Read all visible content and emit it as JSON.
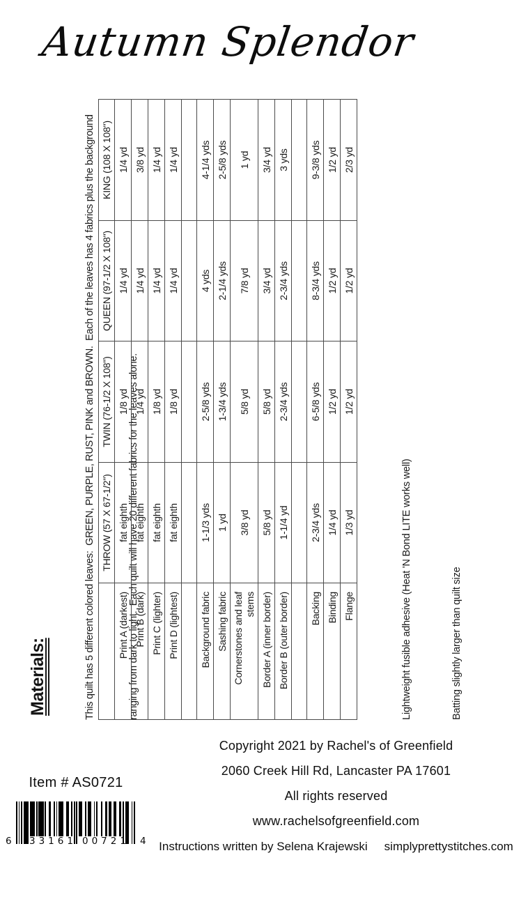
{
  "title": "Autumn Splendor",
  "materials": {
    "heading": "Materials:",
    "description_lines": [
      "This quilt has 5 different colored leaves:  GREEN, PURPLE, RUST, PINK and BROWN.  Each of the leaves has 4 fabrics plus the background",
      "ranging from dark to light.  Each quilt will have 20 different fabrics for the leaves alone."
    ],
    "notes": [
      "Lightweight fusible adhesive (Heat 'N Bond LITE works well)",
      "Batting slightly larger than quilt size"
    ]
  },
  "table": {
    "size_headers": [
      "THROW (57 X 67-1/2\")",
      "TWIN (76-1/2 X 108\")",
      "QUEEN (97-1/2 X 108\")",
      "KING (108 X 108\")"
    ],
    "rows": [
      {
        "label": "Print A (darkest)",
        "values": [
          "fat eighth",
          "1/8 yd",
          "1/4 yd",
          "1/4 yd"
        ]
      },
      {
        "label": "Print B (dark)",
        "values": [
          "fat eighth",
          "1/4 yd",
          "1/4 yd",
          "3/8 yd"
        ]
      },
      {
        "label": "Print C (lighter)",
        "values": [
          "fat eighth",
          "1/8 yd",
          "1/4 yd",
          "1/4 yd"
        ]
      },
      {
        "label": "Print D (lightest)",
        "values": [
          "fat eighth",
          "1/8 yd",
          "1/4 yd",
          "1/4 yd"
        ]
      },
      {
        "spacer": true,
        "label": "",
        "values": [
          "",
          "",
          "",
          ""
        ]
      },
      {
        "label": "Background fabric",
        "values": [
          "1-1/3 yds",
          "2-5/8 yds",
          "4 yds",
          "4-1/4 yds"
        ]
      },
      {
        "label": "Sashing fabric",
        "values": [
          "1 yd",
          "1-3/4 yds",
          "2-1/4 yds",
          "2-5/8 yds"
        ]
      },
      {
        "label": "Cornerstones and leaf stems",
        "label_lines": [
          "Cornerstones and leaf",
          "stems"
        ],
        "tall": true,
        "values": [
          "3/8 yd",
          "5/8 yd",
          "7/8 yd",
          "1 yd"
        ]
      },
      {
        "label": "Border A (inner border)",
        "values": [
          "5/8 yd",
          "5/8 yd",
          "3/4 yd",
          "3/4 yd"
        ]
      },
      {
        "label": "Border B (outer border)",
        "values": [
          "1-1/4 yd",
          "2-3/4 yds",
          "2-3/4 yds",
          "3 yds"
        ]
      },
      {
        "spacer": true,
        "label": "",
        "values": [
          "",
          "",
          "",
          ""
        ]
      },
      {
        "label": "Backing",
        "values": [
          "2-3/4 yds",
          "6-5/8 yds",
          "8-3/4 yds",
          "9-3/8 yds"
        ]
      },
      {
        "label": "Binding",
        "values": [
          "1/4 yd",
          "1/2 yd",
          "1/2 yd",
          "1/2 yd"
        ]
      },
      {
        "label": "Flange",
        "values": [
          "1/3 yd",
          "1/2 yd",
          "1/2 yd",
          "2/3 yd"
        ]
      }
    ]
  },
  "footer": {
    "item_number": "Item # AS0721",
    "barcode": {
      "digits": "633161007214",
      "system_digit": "6",
      "left_group": "33161",
      "right_group": "00721",
      "check_digit": "4"
    },
    "lines": [
      "Copyright 2021 by Rachel's of Greenfield",
      "2060 Creek Hill Rd, Lancaster PA 17601",
      "All rights reserved",
      "www.rachelsofgreenfield.com"
    ],
    "credit": "Instructions written by Selena Krajewski",
    "website": "simplyprettystitches.com"
  }
}
